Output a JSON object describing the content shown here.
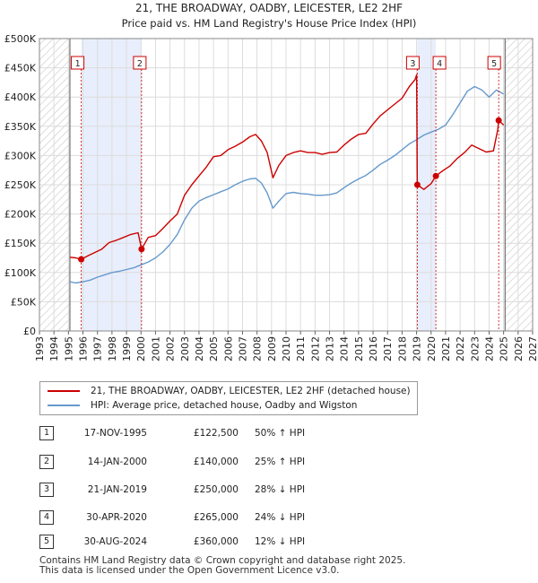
{
  "chart_data": {
    "type": "line",
    "title": "21, THE BROADWAY, OADBY, LEICESTER, LE2 2HF",
    "subtitle": "Price paid vs. HM Land Registry's House Price Index (HPI)",
    "xlabel": "",
    "ylabel": "",
    "xlim": [
      1993,
      2027
    ],
    "ylim": [
      0,
      500000
    ],
    "x_ticks": [
      "1993",
      "1994",
      "1995",
      "1996",
      "1997",
      "1998",
      "1999",
      "2000",
      "2001",
      "2002",
      "2003",
      "2004",
      "2005",
      "2006",
      "2007",
      "2008",
      "2009",
      "2010",
      "2011",
      "2012",
      "2013",
      "2014",
      "2015",
      "2016",
      "2017",
      "2018",
      "2019",
      "2020",
      "2021",
      "2022",
      "2023",
      "2024",
      "2025",
      "2026",
      "2027"
    ],
    "y_ticks": [
      {
        "value": 0,
        "label": "£0"
      },
      {
        "value": 50000,
        "label": "£50K"
      },
      {
        "value": 100000,
        "label": "£100K"
      },
      {
        "value": 150000,
        "label": "£150K"
      },
      {
        "value": 200000,
        "label": "£200K"
      },
      {
        "value": 250000,
        "label": "£250K"
      },
      {
        "value": 300000,
        "label": "£300K"
      },
      {
        "value": 350000,
        "label": "£350K"
      },
      {
        "value": 400000,
        "label": "£400K"
      },
      {
        "value": 450000,
        "label": "£450K"
      },
      {
        "value": 500000,
        "label": "£500K"
      }
    ],
    "hatched_ranges": [
      [
        1993,
        1995.1
      ],
      [
        2025.1,
        2027
      ]
    ],
    "shaded_ranges": [
      [
        1995.88,
        2000.04
      ],
      [
        2019.05,
        2020.33
      ]
    ],
    "series": [
      {
        "name": "21, THE BROADWAY, OADBY, LEICESTER, LE2 2HF (detached house)",
        "color": "#cc0000",
        "x": [
          1995.1,
          1995.5,
          1995.88,
          1996.3,
          1996.8,
          1997.3,
          1997.8,
          1998.3,
          1998.8,
          1999.3,
          1999.8,
          2000.04,
          2000.5,
          2001.0,
          2001.5,
          2002.0,
          2002.5,
          2003.0,
          2003.5,
          2004.0,
          2004.5,
          2005.0,
          2005.5,
          2006.0,
          2006.5,
          2007.0,
          2007.5,
          2007.9,
          2008.3,
          2008.7,
          2009.1,
          2009.5,
          2010.0,
          2010.5,
          2011.0,
          2011.5,
          2012.0,
          2012.5,
          2013.0,
          2013.5,
          2014.0,
          2014.5,
          2015.0,
          2015.5,
          2016.0,
          2016.5,
          2017.0,
          2017.5,
          2018.0,
          2018.5,
          2018.9,
          2019.0,
          2019.05,
          2019.5,
          2020.0,
          2020.33,
          2020.8,
          2021.3,
          2021.8,
          2022.3,
          2022.8,
          2023.3,
          2023.8,
          2024.3,
          2024.6,
          2024.66,
          2024.8,
          2025.0
        ],
        "values": [
          126000,
          125000,
          122500,
          128000,
          134000,
          140000,
          151000,
          155000,
          160000,
          165000,
          168000,
          140000,
          160000,
          163000,
          175000,
          188000,
          200000,
          232000,
          250000,
          265000,
          280000,
          298000,
          300000,
          310000,
          316000,
          323000,
          332000,
          336000,
          325000,
          305000,
          262000,
          283000,
          300000,
          305000,
          308000,
          305000,
          305000,
          302000,
          305000,
          306000,
          318000,
          328000,
          336000,
          338000,
          354000,
          368000,
          378000,
          388000,
          398000,
          418000,
          430000,
          438000,
          250000,
          242000,
          252000,
          265000,
          274000,
          282000,
          295000,
          305000,
          318000,
          312000,
          306000,
          308000,
          345000,
          360000,
          357000,
          352000
        ]
      },
      {
        "name": "HPI: Average price, detached house, Oadby and Wigston",
        "color": "#6699cc",
        "x": [
          1995.1,
          1995.5,
          1996.0,
          1996.5,
          1997.0,
          1997.5,
          1998.0,
          1998.5,
          1999.0,
          1999.5,
          2000.0,
          2000.5,
          2001.0,
          2001.5,
          2002.0,
          2002.5,
          2003.0,
          2003.5,
          2004.0,
          2004.5,
          2005.0,
          2005.5,
          2006.0,
          2006.5,
          2007.0,
          2007.5,
          2007.9,
          2008.3,
          2008.7,
          2009.1,
          2009.5,
          2010.0,
          2010.5,
          2011.0,
          2011.5,
          2012.0,
          2012.5,
          2013.0,
          2013.5,
          2014.0,
          2014.5,
          2015.0,
          2015.5,
          2016.0,
          2016.5,
          2017.0,
          2017.5,
          2018.0,
          2018.5,
          2019.0,
          2019.5,
          2020.0,
          2020.5,
          2021.0,
          2021.5,
          2022.0,
          2022.5,
          2023.0,
          2023.5,
          2024.0,
          2024.5,
          2025.0
        ],
        "values": [
          84000,
          82000,
          84000,
          87000,
          92000,
          96000,
          100000,
          102000,
          105000,
          108000,
          113000,
          118000,
          125000,
          135000,
          148000,
          165000,
          190000,
          210000,
          222000,
          228000,
          233000,
          238000,
          243000,
          250000,
          256000,
          260000,
          261000,
          253000,
          236000,
          210000,
          222000,
          235000,
          237000,
          235000,
          234000,
          232000,
          232000,
          233000,
          236000,
          245000,
          253000,
          260000,
          266000,
          275000,
          285000,
          292000,
          300000,
          310000,
          320000,
          327000,
          335000,
          340000,
          345000,
          352000,
          370000,
          390000,
          410000,
          418000,
          412000,
          400000,
          412000,
          405000
        ]
      }
    ],
    "sales": [
      {
        "label": "1",
        "x": 1995.88,
        "value": 122500
      },
      {
        "label": "2",
        "x": 2000.04,
        "value": 140000
      },
      {
        "label": "3",
        "x": 2019.05,
        "value": 250000
      },
      {
        "label": "4",
        "x": 2020.33,
        "value": 265000
      },
      {
        "label": "5",
        "x": 2024.66,
        "value": 360000
      }
    ]
  },
  "legend": {
    "property": "21, THE BROADWAY, OADBY, LEICESTER, LE2 2HF (detached house)",
    "hpi": "HPI: Average price, detached house, Oadby and Wigston"
  },
  "transactions": [
    {
      "num": "1",
      "date": "17-NOV-1995",
      "price": "£122,500",
      "hpi": "50% ↑ HPI"
    },
    {
      "num": "2",
      "date": "14-JAN-2000",
      "price": "£140,000",
      "hpi": "25% ↑ HPI"
    },
    {
      "num": "3",
      "date": "21-JAN-2019",
      "price": "£250,000",
      "hpi": "28% ↓ HPI"
    },
    {
      "num": "4",
      "date": "30-APR-2020",
      "price": "£265,000",
      "hpi": "24% ↓ HPI"
    },
    {
      "num": "5",
      "date": "30-AUG-2024",
      "price": "£360,000",
      "hpi": "12% ↓ HPI"
    }
  ],
  "footer": {
    "line1": "Contains HM Land Registry data © Crown copyright and database right 2025.",
    "line2": "This data is licensed under the Open Government Licence v3.0."
  }
}
